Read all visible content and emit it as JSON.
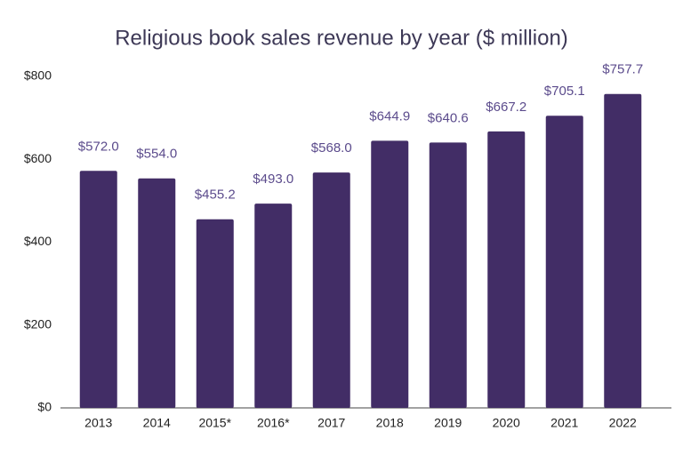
{
  "chart_data": {
    "type": "bar",
    "title": "Religious book sales revenue by year ($ million)",
    "categories": [
      "2013",
      "2014",
      "2015*",
      "2016*",
      "2017",
      "2018",
      "2019",
      "2020",
      "2021",
      "2022"
    ],
    "values": [
      572.0,
      554.0,
      455.2,
      493.0,
      568.0,
      644.9,
      640.6,
      667.2,
      705.1,
      757.7
    ],
    "value_labels": [
      "$572.0",
      "$554.0",
      "$455.2",
      "$493.0",
      "$568.0",
      "$644.9",
      "$640.6",
      "$667.2",
      "$705.1",
      "$757.7"
    ],
    "color": "#422d66",
    "ylim": [
      0,
      800
    ],
    "yticks": [
      {
        "value": 0,
        "label": "$0"
      },
      {
        "value": 200,
        "label": "$200"
      },
      {
        "value": 400,
        "label": "$400"
      },
      {
        "value": 600,
        "label": "$600"
      },
      {
        "value": 800,
        "label": "$800"
      }
    ],
    "grid": false
  }
}
